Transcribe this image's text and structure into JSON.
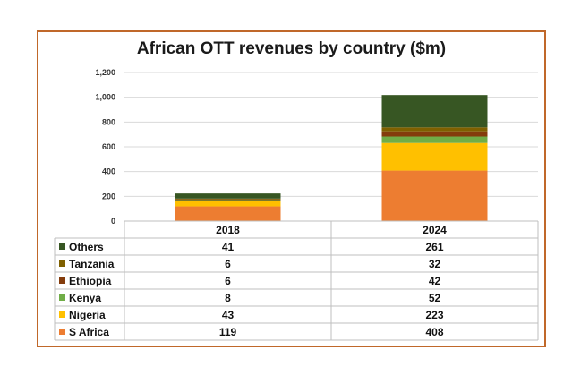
{
  "chart_data": {
    "type": "bar",
    "stacked": true,
    "title": "African OTT revenues by country ($m)",
    "categories": [
      "2018",
      "2024"
    ],
    "ylim": [
      0,
      1200
    ],
    "yticks": [
      "0",
      "200",
      "400",
      "600",
      "800",
      "1,000",
      "1,200"
    ],
    "ytick_values": [
      0,
      200,
      400,
      600,
      800,
      1000,
      1200
    ],
    "grid": true,
    "legend": "data-table",
    "series": [
      {
        "name": "S Africa",
        "color": "#ed7d31",
        "values": [
          119,
          408
        ]
      },
      {
        "name": "Nigeria",
        "color": "#ffc000",
        "values": [
          43,
          223
        ]
      },
      {
        "name": "Kenya",
        "color": "#70ad47",
        "values": [
          8,
          52
        ]
      },
      {
        "name": "Ethiopia",
        "color": "#843c0c",
        "values": [
          6,
          42
        ]
      },
      {
        "name": "Tanzania",
        "color": "#7f6000",
        "values": [
          6,
          32
        ]
      },
      {
        "name": "Others",
        "color": "#375623",
        "values": [
          41,
          261
        ]
      }
    ],
    "table_order": [
      "Others",
      "Tanzania",
      "Ethiopia",
      "Kenya",
      "Nigeria",
      "S Africa"
    ]
  },
  "colors": {
    "frame": "#c0682a",
    "grid": "#d9d9d9"
  }
}
